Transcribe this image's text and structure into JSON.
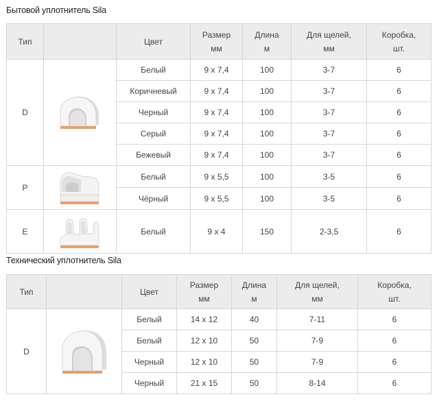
{
  "captions": {
    "household": "Бытовой уплотнитель Sila",
    "technical": "Технический уплотнитель Sila"
  },
  "headers": {
    "type": "Тип",
    "color": "Цвет",
    "size": "Размер",
    "size_unit": "мм",
    "length": "Длина",
    "length_unit": "м",
    "gaps": "Для щелей,",
    "gaps_unit": "мм",
    "box": "Коробка,",
    "box_unit": "шт."
  },
  "household": {
    "groups": [
      {
        "type": "D",
        "profile_icon": "d-profile-seal-icon",
        "rows": [
          {
            "color": "Белый",
            "size": "9 x 7,4",
            "length": "100",
            "gaps": "3-7",
            "box": "6"
          },
          {
            "color": "Коричневый",
            "size": "9 x 7,4",
            "length": "100",
            "gaps": "3-7",
            "box": "6"
          },
          {
            "color": "Черный",
            "size": "9 x 7,4",
            "length": "100",
            "gaps": "3-7",
            "box": "6"
          },
          {
            "color": "Серый",
            "size": "9 x 7,4",
            "length": "100",
            "gaps": "3-7",
            "box": "6"
          },
          {
            "color": "Бежевый",
            "size": "9 x 7,4",
            "length": "100",
            "gaps": "3-7",
            "box": "6"
          }
        ]
      },
      {
        "type": "P",
        "profile_icon": "p-profile-seal-icon",
        "rows": [
          {
            "color": "Белый",
            "size": "9 x 5,5",
            "length": "100",
            "gaps": "3-5",
            "box": "6"
          },
          {
            "color": "Чёрный",
            "size": "9 x 5,5",
            "length": "100",
            "gaps": "3-5",
            "box": "6"
          }
        ]
      },
      {
        "type": "E",
        "profile_icon": "e-profile-seal-icon",
        "rows": [
          {
            "color": "Белый",
            "size": "9 x 4",
            "length": "150",
            "gaps": "2-3,5",
            "box": "6"
          }
        ]
      }
    ]
  },
  "technical": {
    "groups": [
      {
        "type": "D",
        "profile_icon": "d-profile-seal-icon",
        "rows": [
          {
            "color": "Белый",
            "size": "14 x 12",
            "length": "40",
            "gaps": "7-11",
            "box": "6"
          },
          {
            "color": "Белый",
            "size": "12 x 10",
            "length": "50",
            "gaps": "7-9",
            "box": "6"
          },
          {
            "color": "Черный",
            "size": "12 x 10",
            "length": "50",
            "gaps": "7-9",
            "box": "6"
          },
          {
            "color": "Черный",
            "size": "21 x 15",
            "length": "50",
            "gaps": "8-14",
            "box": "6"
          }
        ]
      }
    ]
  },
  "colors": {
    "header_bg": "#ececec",
    "border": "#d6d6d6",
    "seal_body": "#f4f4f4",
    "seal_tape": "#e8a06a"
  }
}
